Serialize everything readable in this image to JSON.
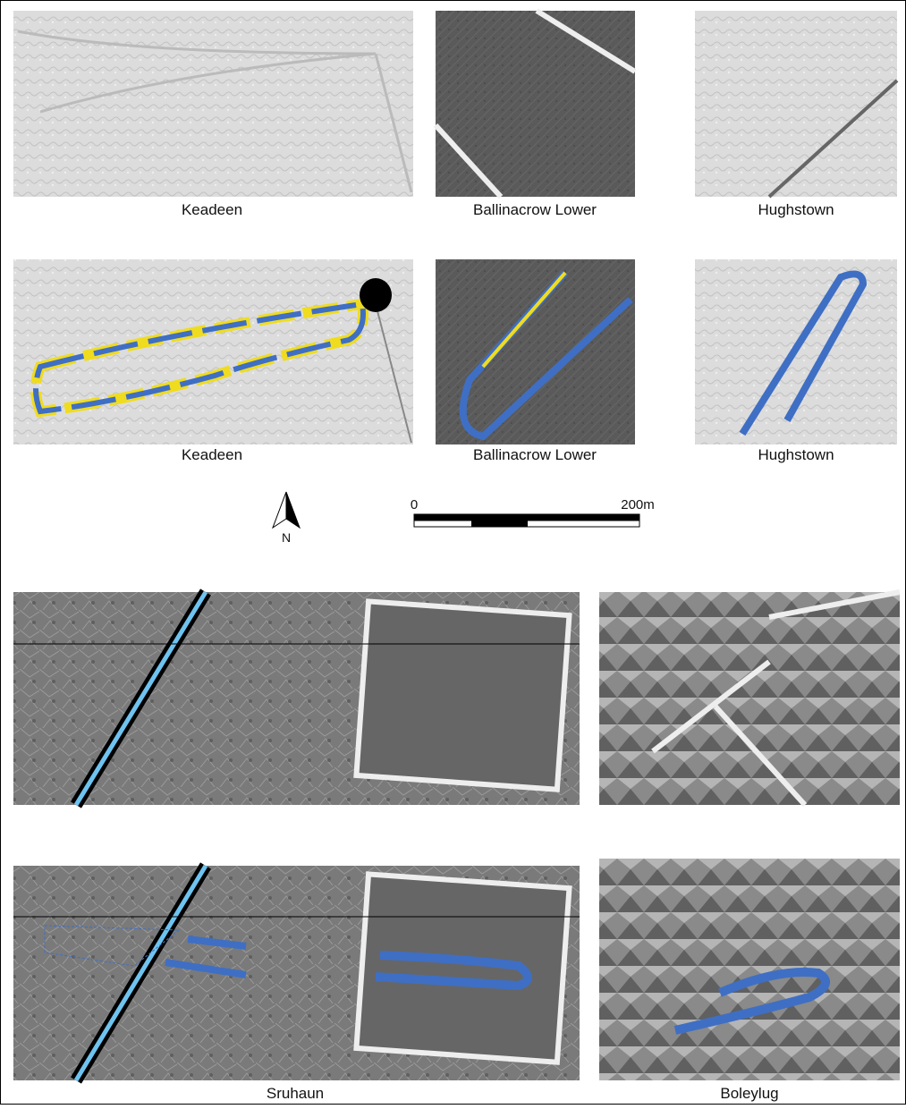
{
  "panels": [
    {
      "label": "Keadeen"
    },
    {
      "label": "Ballinacrow Lower"
    },
    {
      "label": "Hughstown"
    },
    {
      "label": "Keadeen"
    },
    {
      "label": "Ballinacrow Lower"
    },
    {
      "label": "Hughstown"
    },
    {
      "label": "Sruhaun"
    },
    {
      "label": "Boleylug"
    }
  ],
  "scale_bar": {
    "start": "0",
    "end": "200m"
  },
  "north_label": "N"
}
